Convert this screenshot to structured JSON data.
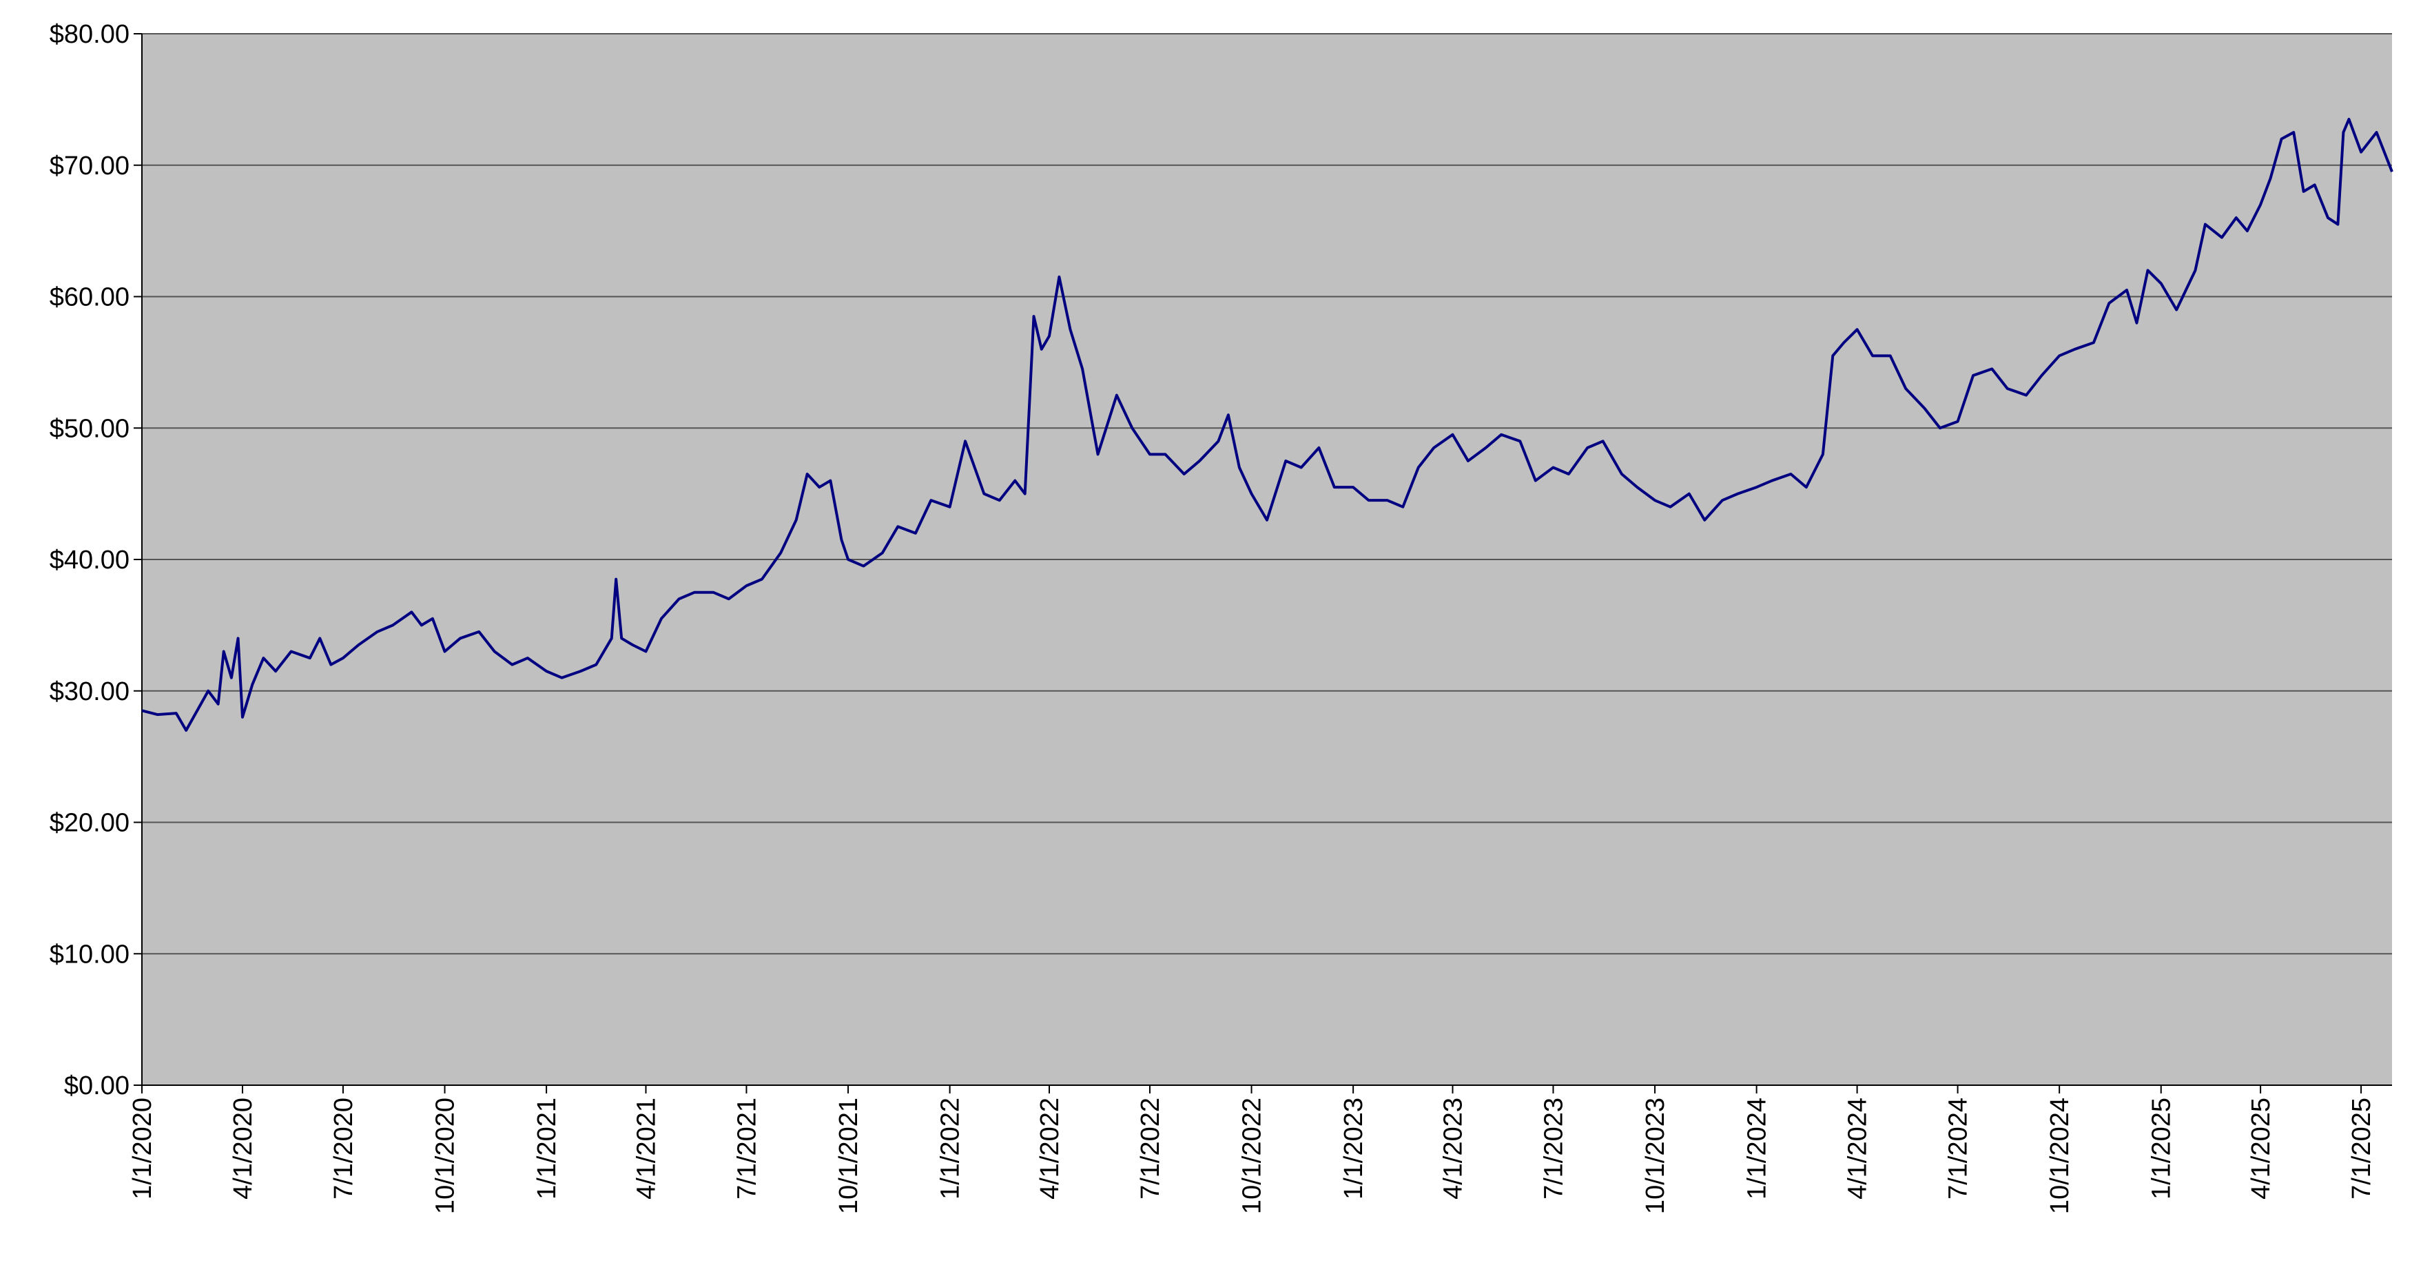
{
  "chart_data": {
    "type": "line",
    "x": [
      "2020-01-01",
      "2020-01-15",
      "2020-02-01",
      "2020-02-10",
      "2020-02-20",
      "2020-03-01",
      "2020-03-10",
      "2020-03-15",
      "2020-03-22",
      "2020-03-28",
      "2020-04-01",
      "2020-04-10",
      "2020-04-20",
      "2020-05-01",
      "2020-05-15",
      "2020-06-01",
      "2020-06-10",
      "2020-06-20",
      "2020-07-01",
      "2020-07-15",
      "2020-08-01",
      "2020-08-15",
      "2020-09-01",
      "2020-09-10",
      "2020-09-20",
      "2020-10-01",
      "2020-10-15",
      "2020-11-01",
      "2020-11-15",
      "2020-12-01",
      "2020-12-15",
      "2021-01-01",
      "2021-01-15",
      "2021-02-01",
      "2021-02-15",
      "2021-03-01",
      "2021-03-05",
      "2021-03-10",
      "2021-03-20",
      "2021-04-01",
      "2021-04-15",
      "2021-05-01",
      "2021-05-15",
      "2021-06-01",
      "2021-06-15",
      "2021-07-01",
      "2021-07-15",
      "2021-08-01",
      "2021-08-15",
      "2021-08-25",
      "2021-09-05",
      "2021-09-15",
      "2021-09-25",
      "2021-10-01",
      "2021-10-15",
      "2021-11-01",
      "2021-11-15",
      "2021-12-01",
      "2021-12-15",
      "2022-01-01",
      "2022-01-15",
      "2022-02-01",
      "2022-02-15",
      "2022-03-01",
      "2022-03-10",
      "2022-03-18",
      "2022-03-25",
      "2022-04-01",
      "2022-04-10",
      "2022-04-20",
      "2022-05-01",
      "2022-05-15",
      "2022-06-01",
      "2022-06-15",
      "2022-07-01",
      "2022-07-15",
      "2022-08-01",
      "2022-08-15",
      "2022-09-01",
      "2022-09-10",
      "2022-09-20",
      "2022-10-01",
      "2022-10-15",
      "2022-11-01",
      "2022-11-15",
      "2022-12-01",
      "2022-12-15",
      "2023-01-01",
      "2023-01-15",
      "2023-02-01",
      "2023-02-15",
      "2023-03-01",
      "2023-03-15",
      "2023-04-01",
      "2023-04-15",
      "2023-05-01",
      "2023-05-15",
      "2023-06-01",
      "2023-06-15",
      "2023-07-01",
      "2023-07-15",
      "2023-08-01",
      "2023-08-15",
      "2023-09-01",
      "2023-09-15",
      "2023-10-01",
      "2023-10-15",
      "2023-11-01",
      "2023-11-15",
      "2023-12-01",
      "2023-12-15",
      "2024-01-01",
      "2024-01-15",
      "2024-02-01",
      "2024-02-15",
      "2024-03-01",
      "2024-03-10",
      "2024-03-20",
      "2024-04-01",
      "2024-04-15",
      "2024-05-01",
      "2024-05-15",
      "2024-06-01",
      "2024-06-15",
      "2024-07-01",
      "2024-07-15",
      "2024-08-01",
      "2024-08-15",
      "2024-09-01",
      "2024-09-15",
      "2024-10-01",
      "2024-10-15",
      "2024-11-01",
      "2024-11-15",
      "2024-12-01",
      "2024-12-10",
      "2024-12-20",
      "2025-01-01",
      "2025-01-15",
      "2025-02-01",
      "2025-02-10",
      "2025-02-25",
      "2025-03-10",
      "2025-03-20",
      "2025-04-01",
      "2025-04-10",
      "2025-04-20",
      "2025-05-01",
      "2025-05-10",
      "2025-05-20",
      "2025-06-01",
      "2025-06-10",
      "2025-06-15",
      "2025-06-20",
      "2025-07-01",
      "2025-07-15",
      "2025-07-29"
    ],
    "values": [
      28.5,
      28.2,
      28.3,
      27.0,
      28.5,
      30.0,
      29.0,
      33.0,
      31.0,
      34.0,
      28.0,
      30.5,
      32.5,
      31.5,
      33.0,
      32.5,
      34.0,
      32.0,
      32.5,
      33.5,
      34.5,
      35.0,
      36.0,
      35.0,
      35.5,
      33.0,
      34.0,
      34.5,
      33.0,
      32.0,
      32.5,
      31.5,
      31.0,
      31.5,
      32.0,
      34.0,
      38.5,
      34.0,
      33.5,
      33.0,
      35.5,
      37.0,
      37.5,
      37.5,
      37.0,
      38.0,
      38.5,
      40.5,
      43.0,
      46.5,
      45.5,
      46.0,
      41.5,
      40.0,
      39.5,
      40.5,
      42.5,
      42.0,
      44.5,
      44.0,
      49.0,
      45.0,
      44.5,
      46.0,
      45.0,
      58.5,
      56.0,
      57.0,
      61.5,
      57.5,
      54.5,
      48.0,
      52.5,
      50.0,
      48.0,
      48.0,
      46.5,
      47.5,
      49.0,
      51.0,
      47.0,
      45.0,
      43.0,
      47.5,
      47.0,
      48.5,
      45.5,
      45.5,
      44.5,
      44.5,
      44.0,
      47.0,
      48.5,
      49.5,
      47.5,
      48.5,
      49.5,
      49.0,
      46.0,
      47.0,
      46.5,
      48.5,
      49.0,
      46.5,
      45.5,
      44.5,
      44.0,
      45.0,
      43.0,
      44.5,
      45.0,
      45.5,
      46.0,
      46.5,
      45.5,
      48.0,
      55.5,
      56.5,
      57.5,
      55.5,
      55.5,
      53.0,
      51.5,
      50.0,
      50.5,
      54.0,
      54.5,
      53.0,
      52.5,
      54.0,
      55.5,
      56.0,
      56.5,
      59.5,
      60.5,
      58.0,
      62.0,
      61.0,
      59.0,
      62.0,
      65.5,
      64.5,
      66.0,
      65.0,
      67.0,
      69.0,
      72.0,
      72.5,
      68.0,
      68.5,
      66.0,
      65.5,
      72.5,
      73.5,
      71.0,
      72.5,
      69.5
    ],
    "color": "#000080",
    "plot_background": "#c0c0c0",
    "grid": true,
    "xlim": [
      "2020-01-01",
      "2025-07-29"
    ],
    "xticks": [
      {
        "value": "2020-01-01",
        "label": "1/1/2020"
      },
      {
        "value": "2020-04-01",
        "label": "4/1/2020"
      },
      {
        "value": "2020-07-01",
        "label": "7/1/2020"
      },
      {
        "value": "2020-10-01",
        "label": "10/1/2020"
      },
      {
        "value": "2021-01-01",
        "label": "1/1/2021"
      },
      {
        "value": "2021-04-01",
        "label": "4/1/2021"
      },
      {
        "value": "2021-07-01",
        "label": "7/1/2021"
      },
      {
        "value": "2021-10-01",
        "label": "10/1/2021"
      },
      {
        "value": "2022-01-01",
        "label": "1/1/2022"
      },
      {
        "value": "2022-04-01",
        "label": "4/1/2022"
      },
      {
        "value": "2022-07-01",
        "label": "7/1/2022"
      },
      {
        "value": "2022-10-01",
        "label": "10/1/2022"
      },
      {
        "value": "2023-01-01",
        "label": "1/1/2023"
      },
      {
        "value": "2023-04-01",
        "label": "4/1/2023"
      },
      {
        "value": "2023-07-01",
        "label": "7/1/2023"
      },
      {
        "value": "2023-10-01",
        "label": "10/1/2023"
      },
      {
        "value": "2024-01-01",
        "label": "1/1/2024"
      },
      {
        "value": "2024-04-01",
        "label": "4/1/2024"
      },
      {
        "value": "2024-07-01",
        "label": "7/1/2024"
      },
      {
        "value": "2024-10-01",
        "label": "10/1/2024"
      },
      {
        "value": "2025-01-01",
        "label": "1/1/2025"
      },
      {
        "value": "2025-04-01",
        "label": "4/1/2025"
      },
      {
        "value": "2025-07-01",
        "label": "7/1/2025"
      }
    ],
    "ylim": [
      0,
      80
    ],
    "yticks": [
      {
        "value": 0,
        "label": "$0.00"
      },
      {
        "value": 10,
        "label": "$10.00"
      },
      {
        "value": 20,
        "label": "$20.00"
      },
      {
        "value": 30,
        "label": "$30.00"
      },
      {
        "value": 40,
        "label": "$40.00"
      },
      {
        "value": 50,
        "label": "$50.00"
      },
      {
        "value": 60,
        "label": "$60.00"
      },
      {
        "value": 70,
        "label": "$70.00"
      },
      {
        "value": 80,
        "label": "$80.00"
      }
    ]
  }
}
